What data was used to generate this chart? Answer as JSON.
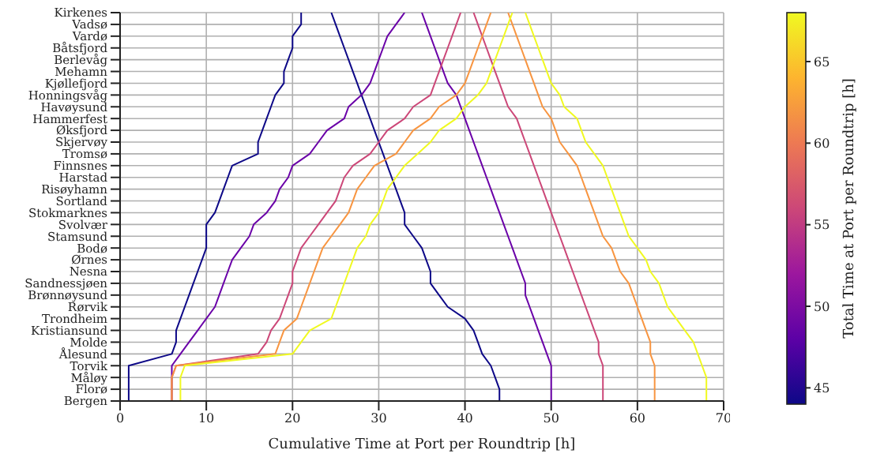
{
  "chart_data": {
    "type": "line",
    "orientation": "horizontal",
    "xlabel": "Cumulative Time at Port per Roundtrip [h]",
    "clabel": "Total Time at Port per Roundtrip [h]",
    "categories": [
      "Kirkenes",
      "Vadsø",
      "Vardø",
      "Båtsfjord",
      "Berlevåg",
      "Mehamn",
      "Kjøllefjord",
      "Honningsvåg",
      "Havøysund",
      "Hammerfest",
      "Øksfjord",
      "Skjervøy",
      "Tromsø",
      "Finnsnes",
      "Harstad",
      "Risøyhamn",
      "Sortland",
      "Stokmarknes",
      "Svolvær",
      "Stamsund",
      "Bodø",
      "Ørnes",
      "Nesna",
      "Sandnessjøen",
      "Brønnøysund",
      "Rørvik",
      "Trondheim",
      "Kristiansund",
      "Molde",
      "Ålesund",
      "Torvik",
      "Måløy",
      "Florø",
      "Bergen"
    ],
    "xlim": [
      0,
      70
    ],
    "xticks": [
      0,
      10,
      20,
      30,
      40,
      50,
      60,
      70
    ],
    "clim": [
      44,
      68
    ],
    "cticks": [
      45,
      50,
      55,
      60,
      65
    ],
    "grid": true,
    "marker": "none",
    "line_style": "solid",
    "series": [
      {
        "color": "#0d0887",
        "values": [
          21,
          21,
          20,
          20,
          19.5,
          19,
          19,
          18,
          17.5,
          17,
          16.5,
          16,
          16,
          13,
          12.5,
          12,
          11.5,
          11,
          10,
          10,
          10,
          9.5,
          9,
          8.5,
          8,
          7.5,
          7,
          6.5,
          6.5,
          6,
          1,
          1,
          1,
          1
        ]
      },
      {
        "color": "#0d0887",
        "values": [
          24.5,
          25,
          25.5,
          26,
          26.5,
          27,
          27.5,
          28,
          28.5,
          29,
          29.5,
          30,
          30.5,
          31,
          31.5,
          32,
          32.5,
          33,
          33,
          34,
          35,
          35.5,
          36,
          36,
          37,
          38,
          40,
          41,
          41.5,
          42,
          43,
          43.5,
          44,
          44
        ]
      },
      {
        "color": "#6a00a8",
        "values": [
          33,
          32,
          31,
          30.5,
          30,
          29.5,
          29,
          28,
          26.5,
          26,
          24,
          23,
          22,
          20,
          19.5,
          18.5,
          18,
          17,
          15.5,
          15,
          14,
          13,
          12.5,
          12,
          11.5,
          11,
          10,
          9,
          8,
          7,
          6,
          6,
          6,
          6
        ]
      },
      {
        "color": "#6a00a8",
        "values": [
          35,
          35.5,
          36,
          36.5,
          37,
          37.5,
          38,
          39,
          39.5,
          40,
          40.5,
          41,
          41.5,
          42,
          42.5,
          43,
          43.5,
          44,
          44.5,
          45,
          45.5,
          46,
          46.5,
          47,
          47,
          47.5,
          48,
          48.5,
          49,
          49.5,
          50,
          50,
          50,
          50
        ]
      },
      {
        "color": "#cc4778",
        "values": [
          39.5,
          39,
          38.5,
          38,
          37.5,
          37,
          36.5,
          36,
          34,
          33,
          31,
          30,
          29,
          27,
          26,
          25.5,
          25,
          24,
          23,
          22,
          21,
          20.5,
          20,
          20,
          19.5,
          19,
          18.5,
          17.5,
          17,
          16,
          6.5,
          6,
          6,
          6
        ]
      },
      {
        "color": "#cc4778",
        "values": [
          41,
          41.5,
          42,
          42.5,
          43,
          43.5,
          44,
          44.5,
          45,
          46,
          46.5,
          47,
          47.5,
          48,
          48.5,
          49,
          49.5,
          50,
          50.5,
          51,
          51.5,
          52,
          52.5,
          53,
          53.5,
          54,
          54.5,
          55,
          55.5,
          55.5,
          56,
          56,
          56,
          56
        ]
      },
      {
        "color": "#f89540",
        "values": [
          43,
          42.5,
          42,
          41.5,
          41,
          40.5,
          40,
          39,
          37,
          36,
          34,
          33,
          32,
          29.5,
          28.5,
          27.5,
          27,
          26.5,
          25.5,
          24.5,
          23.5,
          23,
          22.5,
          22,
          21.5,
          21,
          20.5,
          19,
          18.5,
          18,
          6.5,
          6,
          6,
          6
        ]
      },
      {
        "color": "#f89540",
        "values": [
          45,
          45.5,
          46,
          46.5,
          47,
          47.5,
          48,
          48.5,
          49,
          50,
          50.5,
          51,
          52,
          53,
          53.5,
          54,
          54.5,
          55,
          55.5,
          56,
          57,
          57.5,
          58,
          59,
          59.5,
          60,
          60.5,
          61,
          61.5,
          61.5,
          62,
          62,
          62,
          62
        ]
      },
      {
        "color": "#f0f921",
        "values": [
          45.5,
          45,
          44.5,
          44,
          43.5,
          43,
          42.5,
          41.5,
          40,
          39,
          37,
          36,
          34.5,
          33,
          32,
          31,
          30.5,
          30,
          29,
          28.5,
          27.5,
          27,
          26.5,
          26,
          25.5,
          25,
          24.5,
          22,
          21,
          20,
          7.5,
          7,
          7,
          7
        ]
      },
      {
        "color": "#f0f921",
        "values": [
          47,
          47.5,
          48,
          48.5,
          49,
          49.5,
          50,
          51,
          51.5,
          53,
          53.5,
          54,
          55,
          56,
          56.5,
          57,
          57.5,
          58,
          58.5,
          59,
          60,
          61,
          61.5,
          62.5,
          63,
          63.5,
          64.5,
          65.5,
          66.5,
          67,
          67.5,
          68,
          68,
          68
        ]
      }
    ]
  }
}
